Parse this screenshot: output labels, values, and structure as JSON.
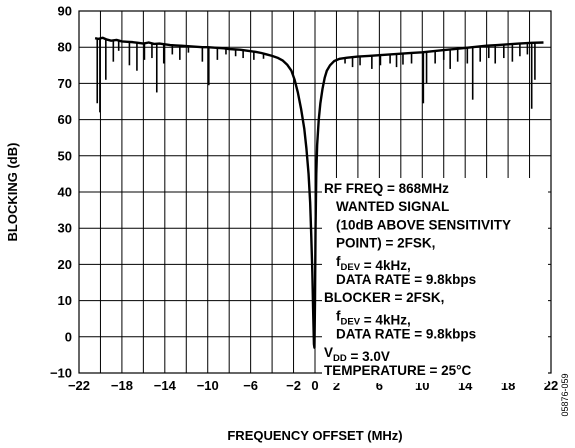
{
  "chart_data": {
    "type": "line",
    "title": "",
    "xlabel": "FREQUENCY OFFSET (MHz)",
    "ylabel": "BLOCKING (dB)",
    "xlim": [
      -22,
      22
    ],
    "ylim": [
      -10,
      90
    ],
    "x_ticks": [
      -22,
      -18,
      -14,
      -10,
      -6,
      -2,
      0,
      2,
      6,
      10,
      14,
      18,
      22
    ],
    "y_ticks": [
      -10,
      0,
      10,
      20,
      30,
      40,
      50,
      60,
      70,
      80,
      90
    ],
    "grid": true,
    "figure_code": "05876-059",
    "annotation": [
      {
        "parts": [
          {
            "t": "RF FREQ = 868MHz"
          }
        ],
        "indent": false
      },
      {
        "parts": [
          {
            "t": "WANTED SIGNAL"
          }
        ],
        "indent": true
      },
      {
        "parts": [
          {
            "t": "(10dB ABOVE SENSITIVITY"
          }
        ],
        "indent": true
      },
      {
        "parts": [
          {
            "t": "POINT) = 2FSK,"
          }
        ],
        "indent": true
      },
      {
        "parts": [
          {
            "t": "f"
          },
          {
            "t": "DEV",
            "sub": true
          },
          {
            "t": " = 4kHz,"
          }
        ],
        "indent": true
      },
      {
        "parts": [
          {
            "t": "DATA RATE = 9.8kbps"
          }
        ],
        "indent": true
      },
      {
        "parts": [
          {
            "t": "BLOCKER = 2FSK,"
          }
        ],
        "indent": false
      },
      {
        "parts": [
          {
            "t": "f"
          },
          {
            "t": "DEV",
            "sub": true
          },
          {
            "t": " = 4kHz,"
          }
        ],
        "indent": true
      },
      {
        "parts": [
          {
            "t": "DATA RATE = 9.8kbps"
          }
        ],
        "indent": true
      },
      {
        "parts": [
          {
            "t": "V"
          },
          {
            "t": "DD",
            "sub": true
          },
          {
            "t": " = 3.0V"
          }
        ],
        "indent": false
      },
      {
        "parts": [
          {
            "t": "TEMPERATURE = 25°C"
          }
        ],
        "indent": false
      }
    ],
    "series": [
      {
        "points": [
          [
            -20.5,
            82.5
          ],
          [
            -20.2,
            82.3
          ],
          [
            -19.8,
            82.6
          ],
          [
            -19.4,
            82.1
          ],
          [
            -19.0,
            81.8
          ],
          [
            -18.5,
            82.0
          ],
          [
            -18.0,
            81.6
          ],
          [
            -17.5,
            81.5
          ],
          [
            -17.0,
            81.4
          ],
          [
            -16.5,
            81.2
          ],
          [
            -16.0,
            81.0
          ],
          [
            -15.5,
            81.3
          ],
          [
            -15.0,
            80.9
          ],
          [
            -14.5,
            81.0
          ],
          [
            -14.0,
            80.8
          ],
          [
            -13.5,
            80.6
          ],
          [
            -13.0,
            80.5
          ],
          [
            -12.5,
            80.4
          ],
          [
            -12.0,
            80.3
          ],
          [
            -11.5,
            80.2
          ],
          [
            -11.0,
            80.1
          ],
          [
            -10.5,
            80.0
          ],
          [
            -10.0,
            80.0
          ],
          [
            -9.5,
            79.9
          ],
          [
            -9.0,
            79.8
          ],
          [
            -8.5,
            79.7
          ],
          [
            -8.0,
            79.5
          ],
          [
            -7.5,
            79.4
          ],
          [
            -7.0,
            79.3
          ],
          [
            -6.5,
            79.1
          ],
          [
            -6.0,
            78.9
          ],
          [
            -5.5,
            78.7
          ],
          [
            -5.0,
            78.4
          ],
          [
            -4.5,
            78.0
          ],
          [
            -4.0,
            77.6
          ],
          [
            -3.5,
            77.1
          ],
          [
            -3.0,
            76.3
          ],
          [
            -2.6,
            75.2
          ],
          [
            -2.2,
            73.5
          ],
          [
            -1.9,
            71.0
          ],
          [
            -1.6,
            67.5
          ],
          [
            -1.3,
            63.0
          ],
          [
            -1.0,
            57.5
          ],
          [
            -0.8,
            52.0
          ],
          [
            -0.6,
            45.0
          ],
          [
            -0.45,
            37.0
          ],
          [
            -0.35,
            28.0
          ],
          [
            -0.25,
            18.0
          ],
          [
            -0.18,
            8.0
          ],
          [
            -0.1,
            -2.0
          ],
          [
            -0.05,
            -3.0
          ],
          [
            0.0,
            10.0
          ],
          [
            0.05,
            30.0
          ],
          [
            0.12,
            45.0
          ],
          [
            0.2,
            53.0
          ],
          [
            0.35,
            60.0
          ],
          [
            0.5,
            64.5
          ],
          [
            0.7,
            68.5
          ],
          [
            0.9,
            71.5
          ],
          [
            1.1,
            73.5
          ],
          [
            1.4,
            75.0
          ],
          [
            1.8,
            76.2
          ],
          [
            2.3,
            76.8
          ],
          [
            3.0,
            77.1
          ],
          [
            4.0,
            77.4
          ],
          [
            5.0,
            77.6
          ],
          [
            6.0,
            77.8
          ],
          [
            7.0,
            78.0
          ],
          [
            8.0,
            78.2
          ],
          [
            9.0,
            78.4
          ],
          [
            10.0,
            78.6
          ],
          [
            11.0,
            78.9
          ],
          [
            12.0,
            79.2
          ],
          [
            13.0,
            79.5
          ],
          [
            14.0,
            79.8
          ],
          [
            15.0,
            80.1
          ],
          [
            16.0,
            80.4
          ],
          [
            17.0,
            80.6
          ],
          [
            18.0,
            80.8
          ],
          [
            19.0,
            81.0
          ],
          [
            19.6,
            81.1
          ],
          [
            20.2,
            81.2
          ],
          [
            21.3,
            81.3
          ]
        ],
        "dips": [
          [
            -20.3,
            64.5
          ],
          [
            -20.05,
            62.0
          ],
          [
            -19.5,
            71.0
          ],
          [
            -18.8,
            76.0
          ],
          [
            -18.3,
            79.0
          ],
          [
            -17.3,
            75.0
          ],
          [
            -16.6,
            73.5
          ],
          [
            -15.9,
            76.5
          ],
          [
            -15.2,
            77.0
          ],
          [
            -14.75,
            67.5
          ],
          [
            -14.1,
            75.5
          ],
          [
            -13.3,
            78.0
          ],
          [
            -12.6,
            76.5
          ],
          [
            -11.8,
            78.5
          ],
          [
            -10.5,
            76.0
          ],
          [
            -9.9,
            69.5
          ],
          [
            -9.1,
            76.5
          ],
          [
            -8.3,
            78.0
          ],
          [
            -7.4,
            77.5
          ],
          [
            -6.7,
            77.0
          ],
          [
            -5.7,
            76.5
          ],
          [
            -4.8,
            76.8
          ],
          [
            2.8,
            75.5
          ],
          [
            3.5,
            74.5
          ],
          [
            4.2,
            75.0
          ],
          [
            5.3,
            74.0
          ],
          [
            6.1,
            75.0
          ],
          [
            7.0,
            75.5
          ],
          [
            7.6,
            74.5
          ],
          [
            8.2,
            75.2
          ],
          [
            9.0,
            75.5
          ],
          [
            10.1,
            64.5
          ],
          [
            10.4,
            70.0
          ],
          [
            11.2,
            75.5
          ],
          [
            12.0,
            76.5
          ],
          [
            12.6,
            74.0
          ],
          [
            13.3,
            76.0
          ],
          [
            14.2,
            75.5
          ],
          [
            14.7,
            65.5
          ],
          [
            15.4,
            76.0
          ],
          [
            16.2,
            77.0
          ],
          [
            16.8,
            75.5
          ],
          [
            17.6,
            77.0
          ],
          [
            18.4,
            76.0
          ],
          [
            19.1,
            77.5
          ],
          [
            19.8,
            78.0
          ],
          [
            20.2,
            63.0
          ],
          [
            20.5,
            71.0
          ]
        ]
      }
    ]
  }
}
